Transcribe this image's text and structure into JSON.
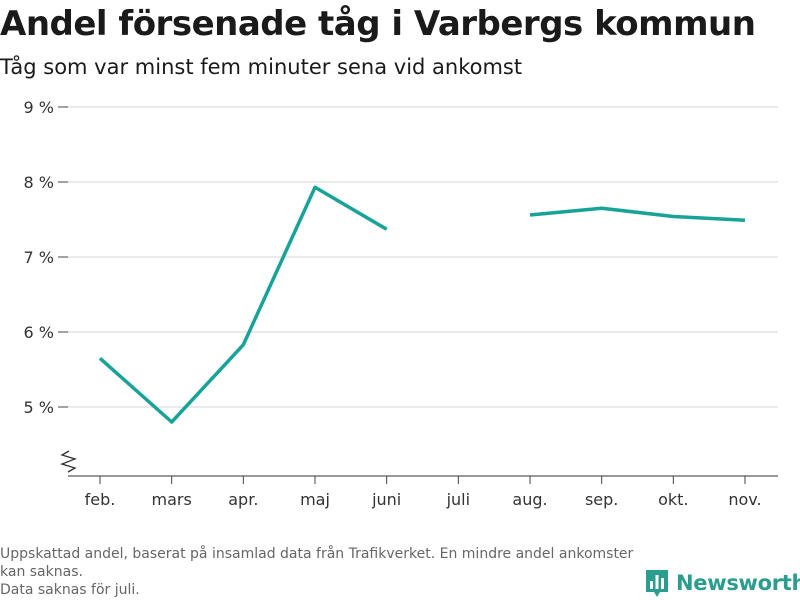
{
  "header": {
    "title": "Andel försenade tåg i Varbergs kommun",
    "subtitle": "Tåg som var minst fem minuter sena vid ankomst"
  },
  "chart_data": {
    "type": "line",
    "title": "Andel försenade tåg i Varbergs kommun",
    "subtitle": "Tåg som var minst fem minuter sena vid ankomst",
    "categories": [
      "feb.",
      "mars",
      "apr.",
      "maj",
      "juni",
      "juli",
      "aug.",
      "sep.",
      "okt.",
      "nov."
    ],
    "series": [
      {
        "values": [
          5.65,
          4.8,
          5.83,
          7.93,
          7.37,
          null,
          7.56,
          7.65,
          7.54,
          7.49
        ]
      }
    ],
    "yticks": [
      5,
      6,
      7,
      8,
      9
    ],
    "ytick_labels": [
      "5 %",
      "6 %",
      "7 %",
      "8 %",
      "9 %"
    ],
    "ylim": [
      4.1,
      9
    ],
    "y_axis_break": true,
    "grid": true,
    "xlabel": "",
    "ylabel": "",
    "line_color": "#17a398"
  },
  "footer": {
    "note_line1": "Uppskattad andel, baserat på insamlad data från Trafikverket. En mindre andel ankomster kan saknas.",
    "note_line2": "Data saknas för juli."
  },
  "brand": {
    "name": "Newsworthy",
    "color": "#2a9d8f",
    "icon": "bar-chart-logo-icon"
  }
}
